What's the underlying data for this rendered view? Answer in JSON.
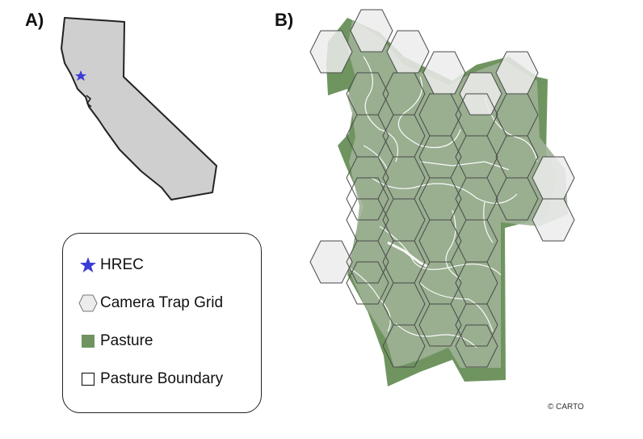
{
  "panels": {
    "a_label": "A)",
    "b_label": "B)"
  },
  "legend": {
    "items": [
      {
        "label": "HREC",
        "icon": "star-icon",
        "color": "#3b3bd6"
      },
      {
        "label": "Camera Trap Grid",
        "icon": "hexagon-icon",
        "color": "#ececec"
      },
      {
        "label": "Pasture",
        "icon": "square-fill-icon",
        "color": "#6f9460"
      },
      {
        "label": "Pasture Boundary",
        "icon": "square-outline-icon",
        "color": "#ffffff"
      }
    ]
  },
  "credit": "© CARTO",
  "colors": {
    "state_fill": "#cfcfcf",
    "state_stroke": "#222222",
    "pasture": "#6f9460",
    "hex_fill": "#e8e8e8",
    "hex_stroke": "#4a4a4a",
    "star": "#3b3bd6"
  }
}
